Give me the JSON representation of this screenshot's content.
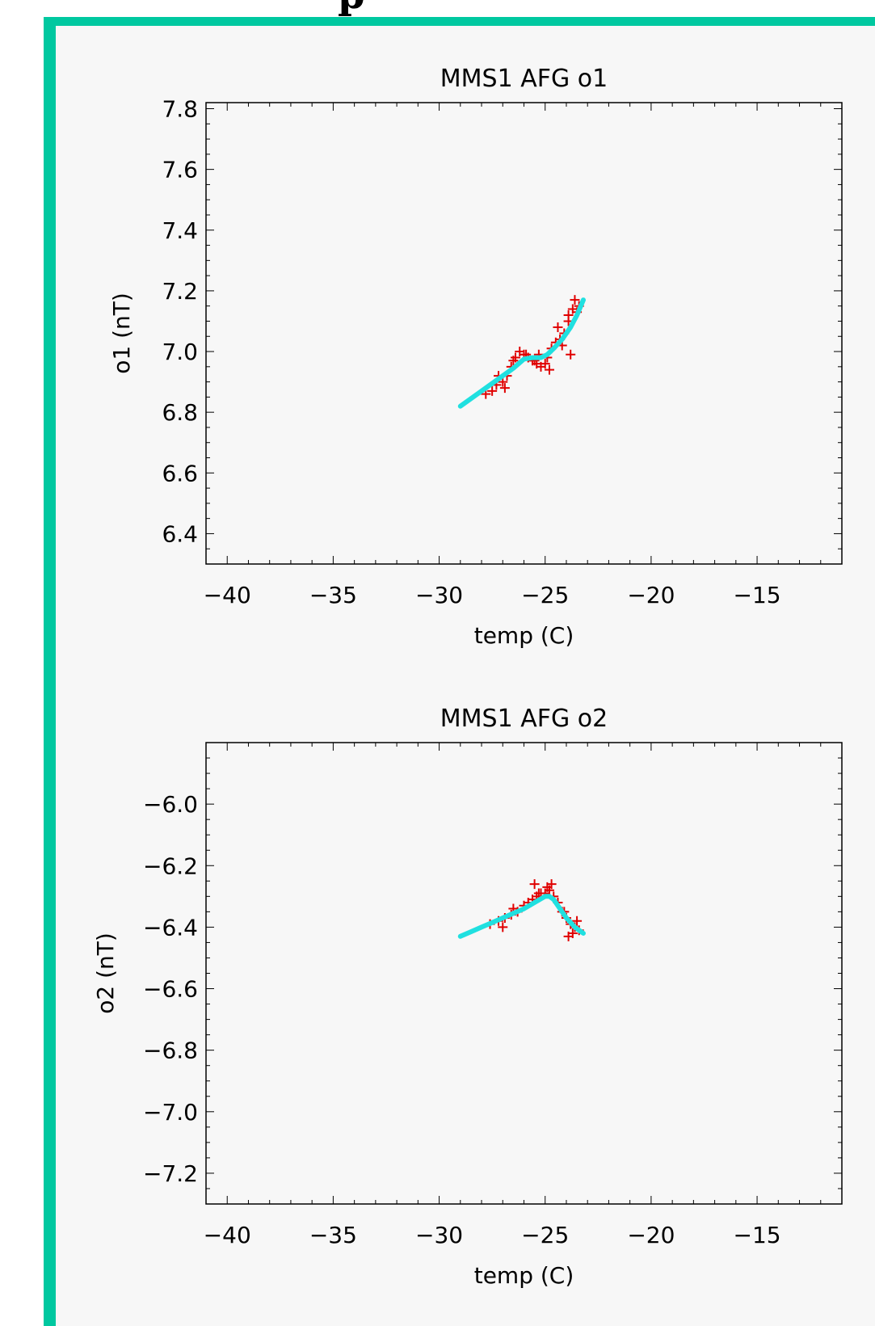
{
  "page": {
    "heading": "p"
  },
  "colors": {
    "frame_border": "#00c8a0",
    "panel_background": "#f7f7f7",
    "data_points": "#e00000",
    "fit_line": "#20e0e0",
    "axes": "#000000"
  },
  "chart_data": [
    {
      "type": "scatter",
      "title": "MMS1 AFG o1",
      "xlabel": "temp (C)",
      "ylabel": "o1 (nT)",
      "xlim": [
        -41,
        -11
      ],
      "ylim": [
        6.3,
        7.82
      ],
      "xticks": [
        -40,
        -35,
        -30,
        -25,
        -20,
        -15
      ],
      "xtick_labels": [
        "−40",
        "−35",
        "−30",
        "−25",
        "−20",
        "−15"
      ],
      "yticks": [
        6.4,
        6.6,
        6.8,
        7.0,
        7.2,
        7.4,
        7.6,
        7.8
      ],
      "ytick_labels": [
        "6.4",
        "6.6",
        "6.8",
        "7.0",
        "7.2",
        "7.4",
        "7.6",
        "7.8"
      ],
      "marker": "+",
      "grid": false,
      "series": [
        {
          "kind": "points",
          "x": [
            -27.8,
            -27.5,
            -27.3,
            -27.0,
            -26.8,
            -26.6,
            -26.4,
            -26.2,
            -26.0,
            -25.8,
            -25.6,
            -25.4,
            -25.2,
            -25.0,
            -24.9,
            -24.7,
            -24.5,
            -24.3,
            -24.1,
            -23.9,
            -23.7,
            -23.5,
            -23.4,
            -27.2,
            -26.5,
            -25.9,
            -25.3,
            -24.8,
            -24.2,
            -23.8,
            -23.6,
            -26.9,
            -25.5,
            -24.4,
            -23.9
          ],
          "y": [
            6.86,
            6.87,
            6.89,
            6.9,
            6.92,
            6.95,
            6.98,
            7.0,
            6.99,
            6.98,
            6.97,
            6.96,
            6.95,
            6.96,
            6.98,
            7.01,
            7.03,
            7.04,
            7.06,
            7.1,
            7.14,
            7.13,
            7.15,
            6.92,
            6.97,
            6.99,
            6.99,
            6.94,
            7.02,
            6.99,
            7.17,
            6.88,
            6.97,
            7.08,
            7.12
          ]
        },
        {
          "kind": "fit-line",
          "x": [
            -29.0,
            -28.5,
            -28.0,
            -27.5,
            -27.0,
            -26.5,
            -26.0,
            -25.6,
            -25.2,
            -24.9,
            -24.6,
            -24.2,
            -23.8,
            -23.5,
            -23.2
          ],
          "y": [
            6.82,
            6.845,
            6.87,
            6.895,
            6.92,
            6.945,
            6.975,
            6.98,
            6.98,
            6.99,
            7.01,
            7.04,
            7.08,
            7.12,
            7.17
          ]
        }
      ]
    },
    {
      "type": "scatter",
      "title": "MMS1 AFG o2",
      "xlabel": "temp (C)",
      "ylabel": "o2 (nT)",
      "xlim": [
        -41,
        -11
      ],
      "ylim": [
        -7.3,
        -5.8
      ],
      "xticks": [
        -40,
        -35,
        -30,
        -25,
        -20,
        -15
      ],
      "xtick_labels": [
        "−40",
        "−35",
        "−30",
        "−25",
        "−20",
        "−15"
      ],
      "yticks": [
        -7.2,
        -7.0,
        -6.8,
        -6.6,
        -6.4,
        -6.2,
        -6.0
      ],
      "ytick_labels": [
        "−7.2",
        "−7.0",
        "−6.8",
        "−6.6",
        "−6.4",
        "−6.2",
        "−6.0"
      ],
      "marker": "+",
      "grid": false,
      "series": [
        {
          "kind": "points",
          "x": [
            -27.6,
            -27.2,
            -26.9,
            -26.6,
            -26.3,
            -26.0,
            -25.8,
            -25.6,
            -25.4,
            -25.2,
            -25.0,
            -24.8,
            -24.6,
            -24.4,
            -24.2,
            -24.0,
            -23.8,
            -23.6,
            -23.4,
            -27.0,
            -26.5,
            -25.5,
            -25.3,
            -24.9,
            -24.7,
            -24.1,
            -23.9,
            -23.7,
            -23.5
          ],
          "y": [
            -6.39,
            -6.38,
            -6.37,
            -6.36,
            -6.35,
            -6.33,
            -6.32,
            -6.31,
            -6.3,
            -6.29,
            -6.29,
            -6.28,
            -6.3,
            -6.32,
            -6.35,
            -6.37,
            -6.39,
            -6.4,
            -6.41,
            -6.4,
            -6.34,
            -6.26,
            -6.29,
            -6.27,
            -6.26,
            -6.35,
            -6.43,
            -6.42,
            -6.38
          ]
        },
        {
          "kind": "fit-line",
          "x": [
            -29.0,
            -28.5,
            -28.0,
            -27.5,
            -27.0,
            -26.5,
            -26.0,
            -25.5,
            -25.0,
            -24.8,
            -24.6,
            -24.3,
            -24.0,
            -23.6,
            -23.2
          ],
          "y": [
            -6.43,
            -6.415,
            -6.4,
            -6.385,
            -6.37,
            -6.355,
            -6.34,
            -6.32,
            -6.3,
            -6.3,
            -6.31,
            -6.34,
            -6.37,
            -6.4,
            -6.42
          ]
        }
      ]
    }
  ]
}
